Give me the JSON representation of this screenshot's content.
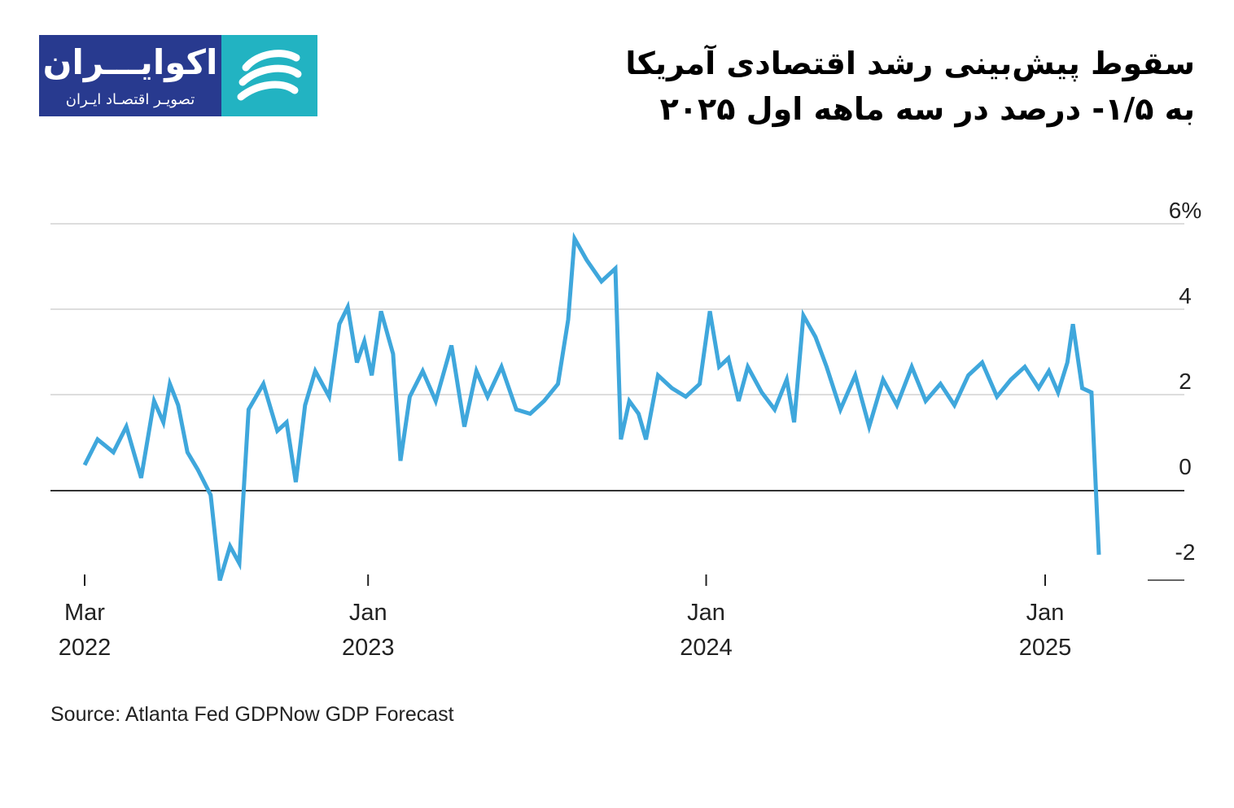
{
  "logo": {
    "name": "اکوایـــران",
    "tagline": "تصویـر اقتصـاد ایـران",
    "mark": "swirl-logo-icon"
  },
  "title": {
    "line1": "سقوط پیش‌بینی رشد اقتصادی آمریکا",
    "line2": "به ۱/۵- درصد در سه ماهه اول ۲۰۲۵"
  },
  "source": "Source: Atlanta Fed GDPNow GDP Forecast",
  "colors": {
    "line": "#3fa7dc",
    "grid": "#dddddd",
    "zero": "#333333"
  },
  "chart_data": {
    "type": "line",
    "title": "",
    "xlabel": "",
    "ylabel": "",
    "ylim": [
      -2,
      6
    ],
    "yticks": [
      "6%",
      "4",
      "2",
      "0",
      "-2"
    ],
    "xticks": [
      {
        "date": "2022-03-01",
        "month": "Mar",
        "year": "2022"
      },
      {
        "date": "2023-01-01",
        "month": "Jan",
        "year": "2023"
      },
      {
        "date": "2024-01-01",
        "month": "Jan",
        "year": "2024"
      },
      {
        "date": "2025-01-01",
        "month": "Jan",
        "year": "2025"
      }
    ],
    "grid": true,
    "legend": "none",
    "series": [
      {
        "x": [
          "2022-03-01",
          "2022-03-15",
          "2022-04-01",
          "2022-04-15",
          "2022-05-01",
          "2022-05-15",
          "2022-05-25",
          "2022-06-01",
          "2022-06-10",
          "2022-06-20",
          "2022-07-01",
          "2022-07-15",
          "2022-07-25",
          "2022-08-05",
          "2022-08-15",
          "2022-08-25",
          "2022-09-10",
          "2022-09-25",
          "2022-10-05",
          "2022-10-15",
          "2022-10-25",
          "2022-11-05",
          "2022-11-20",
          "2022-12-01",
          "2022-12-10",
          "2022-12-20",
          "2022-12-28",
          "2023-01-05",
          "2023-01-15",
          "2023-01-28",
          "2023-02-05",
          "2023-02-15",
          "2023-03-01",
          "2023-03-15",
          "2023-04-01",
          "2023-04-15",
          "2023-04-28",
          "2023-05-10",
          "2023-05-25",
          "2023-06-10",
          "2023-06-25",
          "2023-07-10",
          "2023-07-25",
          "2023-08-05",
          "2023-08-12",
          "2023-08-25",
          "2023-09-10",
          "2023-09-25",
          "2023-10-01",
          "2023-10-10",
          "2023-10-20",
          "2023-10-28",
          "2023-11-10",
          "2023-11-25",
          "2023-12-10",
          "2023-12-25",
          "2024-01-05",
          "2024-01-15",
          "2024-01-25",
          "2024-02-05",
          "2024-02-15",
          "2024-03-01",
          "2024-03-15",
          "2024-03-28",
          "2024-04-05",
          "2024-04-15",
          "2024-04-28",
          "2024-05-10",
          "2024-05-25",
          "2024-06-10",
          "2024-06-25",
          "2024-07-10",
          "2024-07-25",
          "2024-08-10",
          "2024-08-25",
          "2024-09-10",
          "2024-09-25",
          "2024-10-10",
          "2024-10-25",
          "2024-11-10",
          "2024-11-25",
          "2024-12-10",
          "2024-12-25",
          "2025-01-05",
          "2025-01-15",
          "2025-01-25",
          "2025-01-31",
          "2025-02-10",
          "2025-02-20",
          "2025-02-28"
        ],
        "y": [
          0.6,
          1.2,
          0.9,
          1.5,
          0.3,
          2.1,
          1.6,
          2.5,
          2.0,
          0.9,
          0.5,
          -0.1,
          -2.1,
          -1.3,
          -1.7,
          1.9,
          2.5,
          1.4,
          1.6,
          0.2,
          2.0,
          2.8,
          2.2,
          3.9,
          4.3,
          3.0,
          3.5,
          2.7,
          4.2,
          3.2,
          0.7,
          2.2,
          2.8,
          2.1,
          3.4,
          1.5,
          2.8,
          2.2,
          2.9,
          1.9,
          1.8,
          2.1,
          2.5,
          4.0,
          5.9,
          5.4,
          4.9,
          5.2,
          1.2,
          2.1,
          1.8,
          1.2,
          2.7,
          2.4,
          2.2,
          2.5,
          4.2,
          2.9,
          3.1,
          2.1,
          2.9,
          2.3,
          1.9,
          2.6,
          1.6,
          4.1,
          3.6,
          2.9,
          1.9,
          2.7,
          1.5,
          2.6,
          2.0,
          2.9,
          2.1,
          2.5,
          2.0,
          2.7,
          3.0,
          2.2,
          2.6,
          2.9,
          2.4,
          2.8,
          2.3,
          3.0,
          3.9,
          2.4,
          2.3,
          -1.5
        ]
      }
    ]
  }
}
